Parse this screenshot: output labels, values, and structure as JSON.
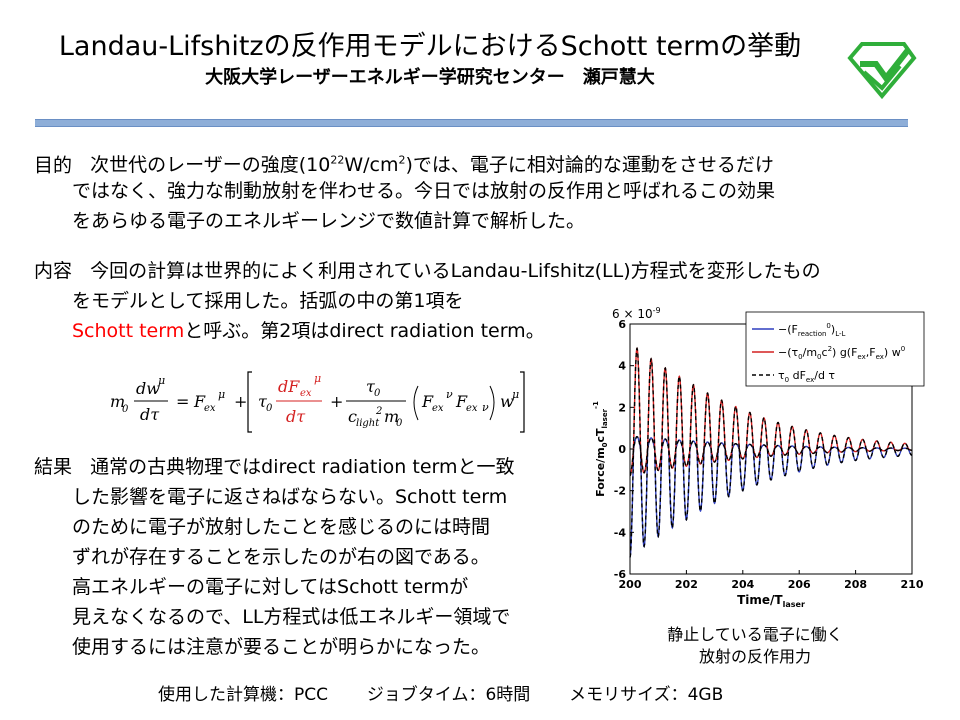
{
  "header": {
    "title": "Landau-Lifshitzの反作用モデルにおけるSchott termの挙動",
    "subtitle": "大阪大学レーザーエネルギー学研究センター　瀬戸慧大"
  },
  "purpose": {
    "label": "目的",
    "line1_a": "次世代のレーザーの強度(10",
    "line1_sup1": "22",
    "line1_b": "W/cm",
    "line1_sup2": "2",
    "line1_c": ")では、電子に相対論的な運動をさせるだけ",
    "line2": "ではなく、強力な制動放射を伴わせる。今日では放射の反作用と呼ばれるこの効果",
    "line3": "をあらゆる電子のエネルギーレンジで数値計算で解析した。"
  },
  "content": {
    "label": "内容",
    "line1": "今回の計算は世界的によく利用されているLandau-Lifshitz(LL)方程式を変形したもの",
    "line2": "をモデルとして採用した。括弧の中の第1項を",
    "line3_red": "Schott term",
    "line3_rest": "と呼ぶ。第2項はdirect radiation term。"
  },
  "results": {
    "label": "結果",
    "line1": "通常の古典物理ではdirect radiation termと一致",
    "line2": "した影響を電子に返さねばならない。Schott term",
    "line3": "のために電子が放射したことを感じるのには時間",
    "line4": "ずれが存在することを示したのが右の図である。",
    "line5": "高エネルギーの電子に対してはSchott termが",
    "line6": "見えなくなるので、LL方程式は低エネルギー領域で",
    "line7": "使用するには注意が要ることが明らかになった。"
  },
  "caption": {
    "line1": "静止している電子に働く",
    "line2": "放射の反作用力"
  },
  "footer": {
    "computer_label": "使用した計算機：PCC",
    "jobtime_label": "ジョブタイム：6時間",
    "memory_label": "メモリサイズ：4GB"
  },
  "equation": {
    "m0": "m",
    "m0_sub": "0",
    "dw": "dw",
    "mu": "μ",
    "dtau": "dτ",
    "eq": "=",
    "F": "F",
    "ex": "ex",
    "plus": "+",
    "tau": "τ",
    "tau_sub": "0",
    "dF": "dF",
    "c": "c",
    "light": "light",
    "two": "2",
    "nu": "ν",
    "w": "w"
  },
  "chart_data": {
    "type": "line",
    "title": "",
    "multiplier_label": "6 × 10",
    "multiplier_exp": "-9",
    "xlabel": "Time/T",
    "xlabel_sub": "laser",
    "ylabel": "Force/m",
    "ylabel_sub": "0",
    "ylabel_mid": "cT",
    "ylabel_sub2": "laser",
    "ylabel_sup": "-1",
    "xlim": [
      200,
      210
    ],
    "ylim": [
      -6,
      6
    ],
    "x_ticks": [
      "200",
      "202",
      "204",
      "206",
      "208",
      "210"
    ],
    "y_ticks": [
      "-6",
      "-4",
      "-2",
      "0",
      "2",
      "4",
      "6"
    ],
    "period": 0.5,
    "decay_amplitudes": {
      "x": [
        200,
        202,
        204,
        206,
        208,
        210
      ],
      "red_positive_peak": [
        5.1,
        3.3,
        1.9,
        1.0,
        0.5,
        0.25
      ],
      "blue_negative_peak": [
        -5.2,
        -3.4,
        -2.0,
        -1.1,
        -0.55,
        -0.3
      ]
    },
    "legend": [
      {
        "label": "−(F",
        "label_sub": "reaction",
        "label_sup": "0",
        "label_end": ")",
        "label_tail_sub": "L-L",
        "color": "#2f3fbf",
        "style": "solid"
      },
      {
        "label": "−(τ",
        "label_sub": "0",
        "label_mid": "/m",
        "label_sub2": "0",
        "label_mid2": "c",
        "label_sup": "2",
        "label_end": ") g(F",
        "label_sub3": "ex",
        "label_end2": ",F",
        "label_sub4": "ex",
        "label_end3": ") w",
        "label_sup2": "0",
        "color": "#d42020",
        "style": "solid"
      },
      {
        "label": "τ",
        "label_sub": "0",
        "label_mid": " dF",
        "label_sub2": "ex",
        "label_end": "/d τ",
        "color": "#000000",
        "style": "dashed"
      }
    ],
    "legend_position": "top-right",
    "grid": false
  },
  "colors": {
    "accent_rule": "#8eaed8",
    "emphasis": "#ff0000",
    "logo_green": "#2fae3a"
  },
  "logo_icon": "diamond-logo-icon"
}
